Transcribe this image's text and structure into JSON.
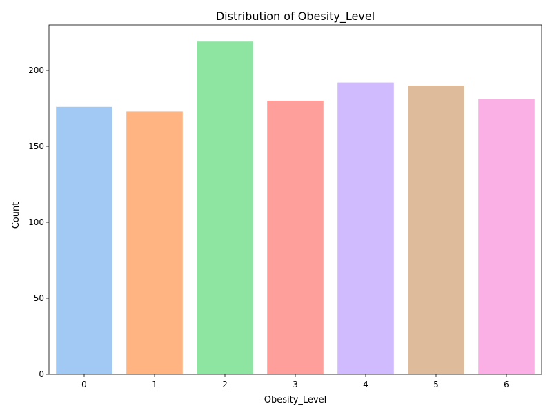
{
  "chart_data": {
    "type": "bar",
    "title": "Distribution of Obesity_Level",
    "xlabel": "Obesity_Level",
    "ylabel": "Count",
    "categories": [
      "0",
      "1",
      "2",
      "3",
      "4",
      "5",
      "6"
    ],
    "values": [
      176,
      173,
      219,
      180,
      192,
      190,
      181
    ],
    "colors": [
      "#a1c9f4",
      "#ffb482",
      "#8de5a1",
      "#ff9f9b",
      "#d0bbff",
      "#debb9b",
      "#fab0e4"
    ],
    "ylim": [
      0,
      230
    ],
    "yticks": [
      0,
      50,
      100,
      150,
      200
    ],
    "ytick_labels": [
      "0",
      "50",
      "100",
      "150",
      "200"
    ],
    "grid": false,
    "legend": "none"
  }
}
